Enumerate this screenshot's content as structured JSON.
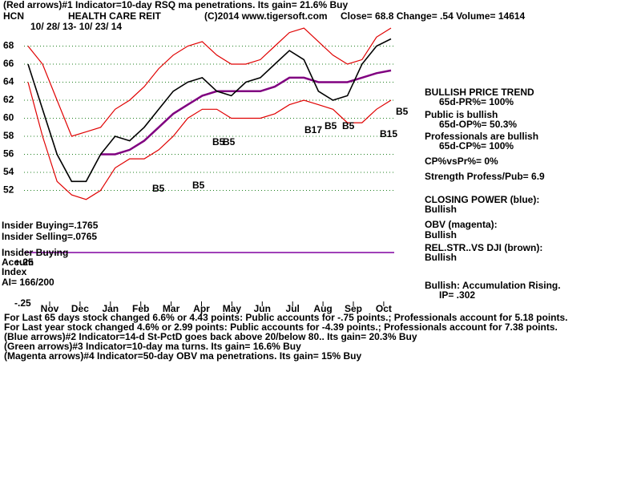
{
  "chart_data": {
    "type": "line",
    "title": "(Red arrows)#1 Indicator=10-day RSQ ma penetrations. Its gain= 21.6% Buy",
    "header": {
      "ticker": "HCN",
      "name": "HEALTH CARE REIT",
      "source": "(C)2014 www.tigersoft.com",
      "quote": "Close= 68.8 Change= .54 Volume= 14614",
      "dates": "10/ 28/ 13- 10/ 23/ 14"
    },
    "xtick_labels": [
      "Nov",
      "Dec",
      "Jan",
      "Feb",
      "Mar",
      "Apr",
      "May",
      "Jun",
      "Jul",
      "Aug",
      "Sep",
      "Oct"
    ],
    "ylim": [
      50,
      70
    ],
    "yticks": [
      52,
      54,
      56,
      58,
      60,
      62,
      64,
      66,
      68
    ],
    "grid": true,
    "series": [
      {
        "name": "Upper band",
        "color": "#e00000",
        "values": [
          68,
          66,
          62,
          58,
          58.5,
          59,
          61,
          62,
          63.5,
          65.5,
          67,
          68,
          68.5,
          67,
          66,
          66,
          66.5,
          68,
          69.5,
          70,
          68.5,
          67,
          66,
          66.5,
          69,
          70
        ]
      },
      {
        "name": "Lower band",
        "color": "#e00000",
        "values": [
          64,
          58,
          53,
          51.5,
          51,
          52,
          54.5,
          55.5,
          55.5,
          56.5,
          58,
          60,
          61,
          61,
          60,
          60,
          60,
          60.5,
          61.5,
          62,
          61.5,
          61,
          59.5,
          59.5,
          61,
          62
        ]
      },
      {
        "name": "50-day ma",
        "color": "#800080",
        "values": [
          null,
          null,
          null,
          null,
          null,
          56,
          56,
          56.5,
          57.5,
          59,
          60.5,
          61.5,
          62.5,
          63,
          63,
          63,
          63,
          63.5,
          64.5,
          64.5,
          64,
          64,
          64,
          64.5,
          65,
          65.3
        ]
      },
      {
        "name": "Close",
        "color": "#000000",
        "values": [
          66,
          61,
          56,
          53,
          53,
          56,
          58,
          57.5,
          59,
          61,
          63,
          64,
          64.5,
          63,
          62.5,
          64,
          64.5,
          66,
          67.5,
          66.5,
          63,
          62,
          62.5,
          66,
          68,
          68.8
        ]
      }
    ],
    "signals": [
      "B5",
      "B5",
      "B5",
      "B5",
      "B17",
      "B5",
      "B5",
      "B15",
      "B5"
    ],
    "panel_labels": [
      "Insider Buying=.1765",
      "Insider Selling=.0765",
      "Insider Buying",
      "Accum",
      "+.25",
      "Index",
      "AI= 166/200",
      "-.25"
    ],
    "side_notes": [
      "BULLISH PRICE TREND",
      "65d-PR%= 100%",
      "Public is bullish",
      "65d-OP%= 50.3%",
      "Professionals are bullish",
      "65d-CP%= 100%",
      "CP%vsPr%= 0%",
      "Strength Profess/Pub= 6.9",
      "CLOSING POWER (blue):",
      "Bullish",
      "OBV (magenta):",
      "Bullish",
      "REL.STR..VS DJI (brown):",
      "Bullish",
      "Bullish: Accumulation Rising.",
      "IP= .302"
    ],
    "footer": [
      "For Last 65 days stock changed 6.6% or 4.43 points: Public accounts for -.75 points.; Professionals account for 5.18 points.",
      "For Last year stock changed 4.6% or 2.99 points: Public accounts for -4.39 points.; Professionals account for 7.38 points.",
      "(Blue arrows)#2 Indicator=14-d St-PctD goes back above 20/below 80.. Its gain= 20.3% Buy",
      "(Green arrows)#3 Indicator=10-day ma turns. Its gain= 16.6% Buy",
      "(Magenta arrows)#4 Indicator=50-day OBV ma penetrations. Its gain= 15% Buy"
    ]
  }
}
